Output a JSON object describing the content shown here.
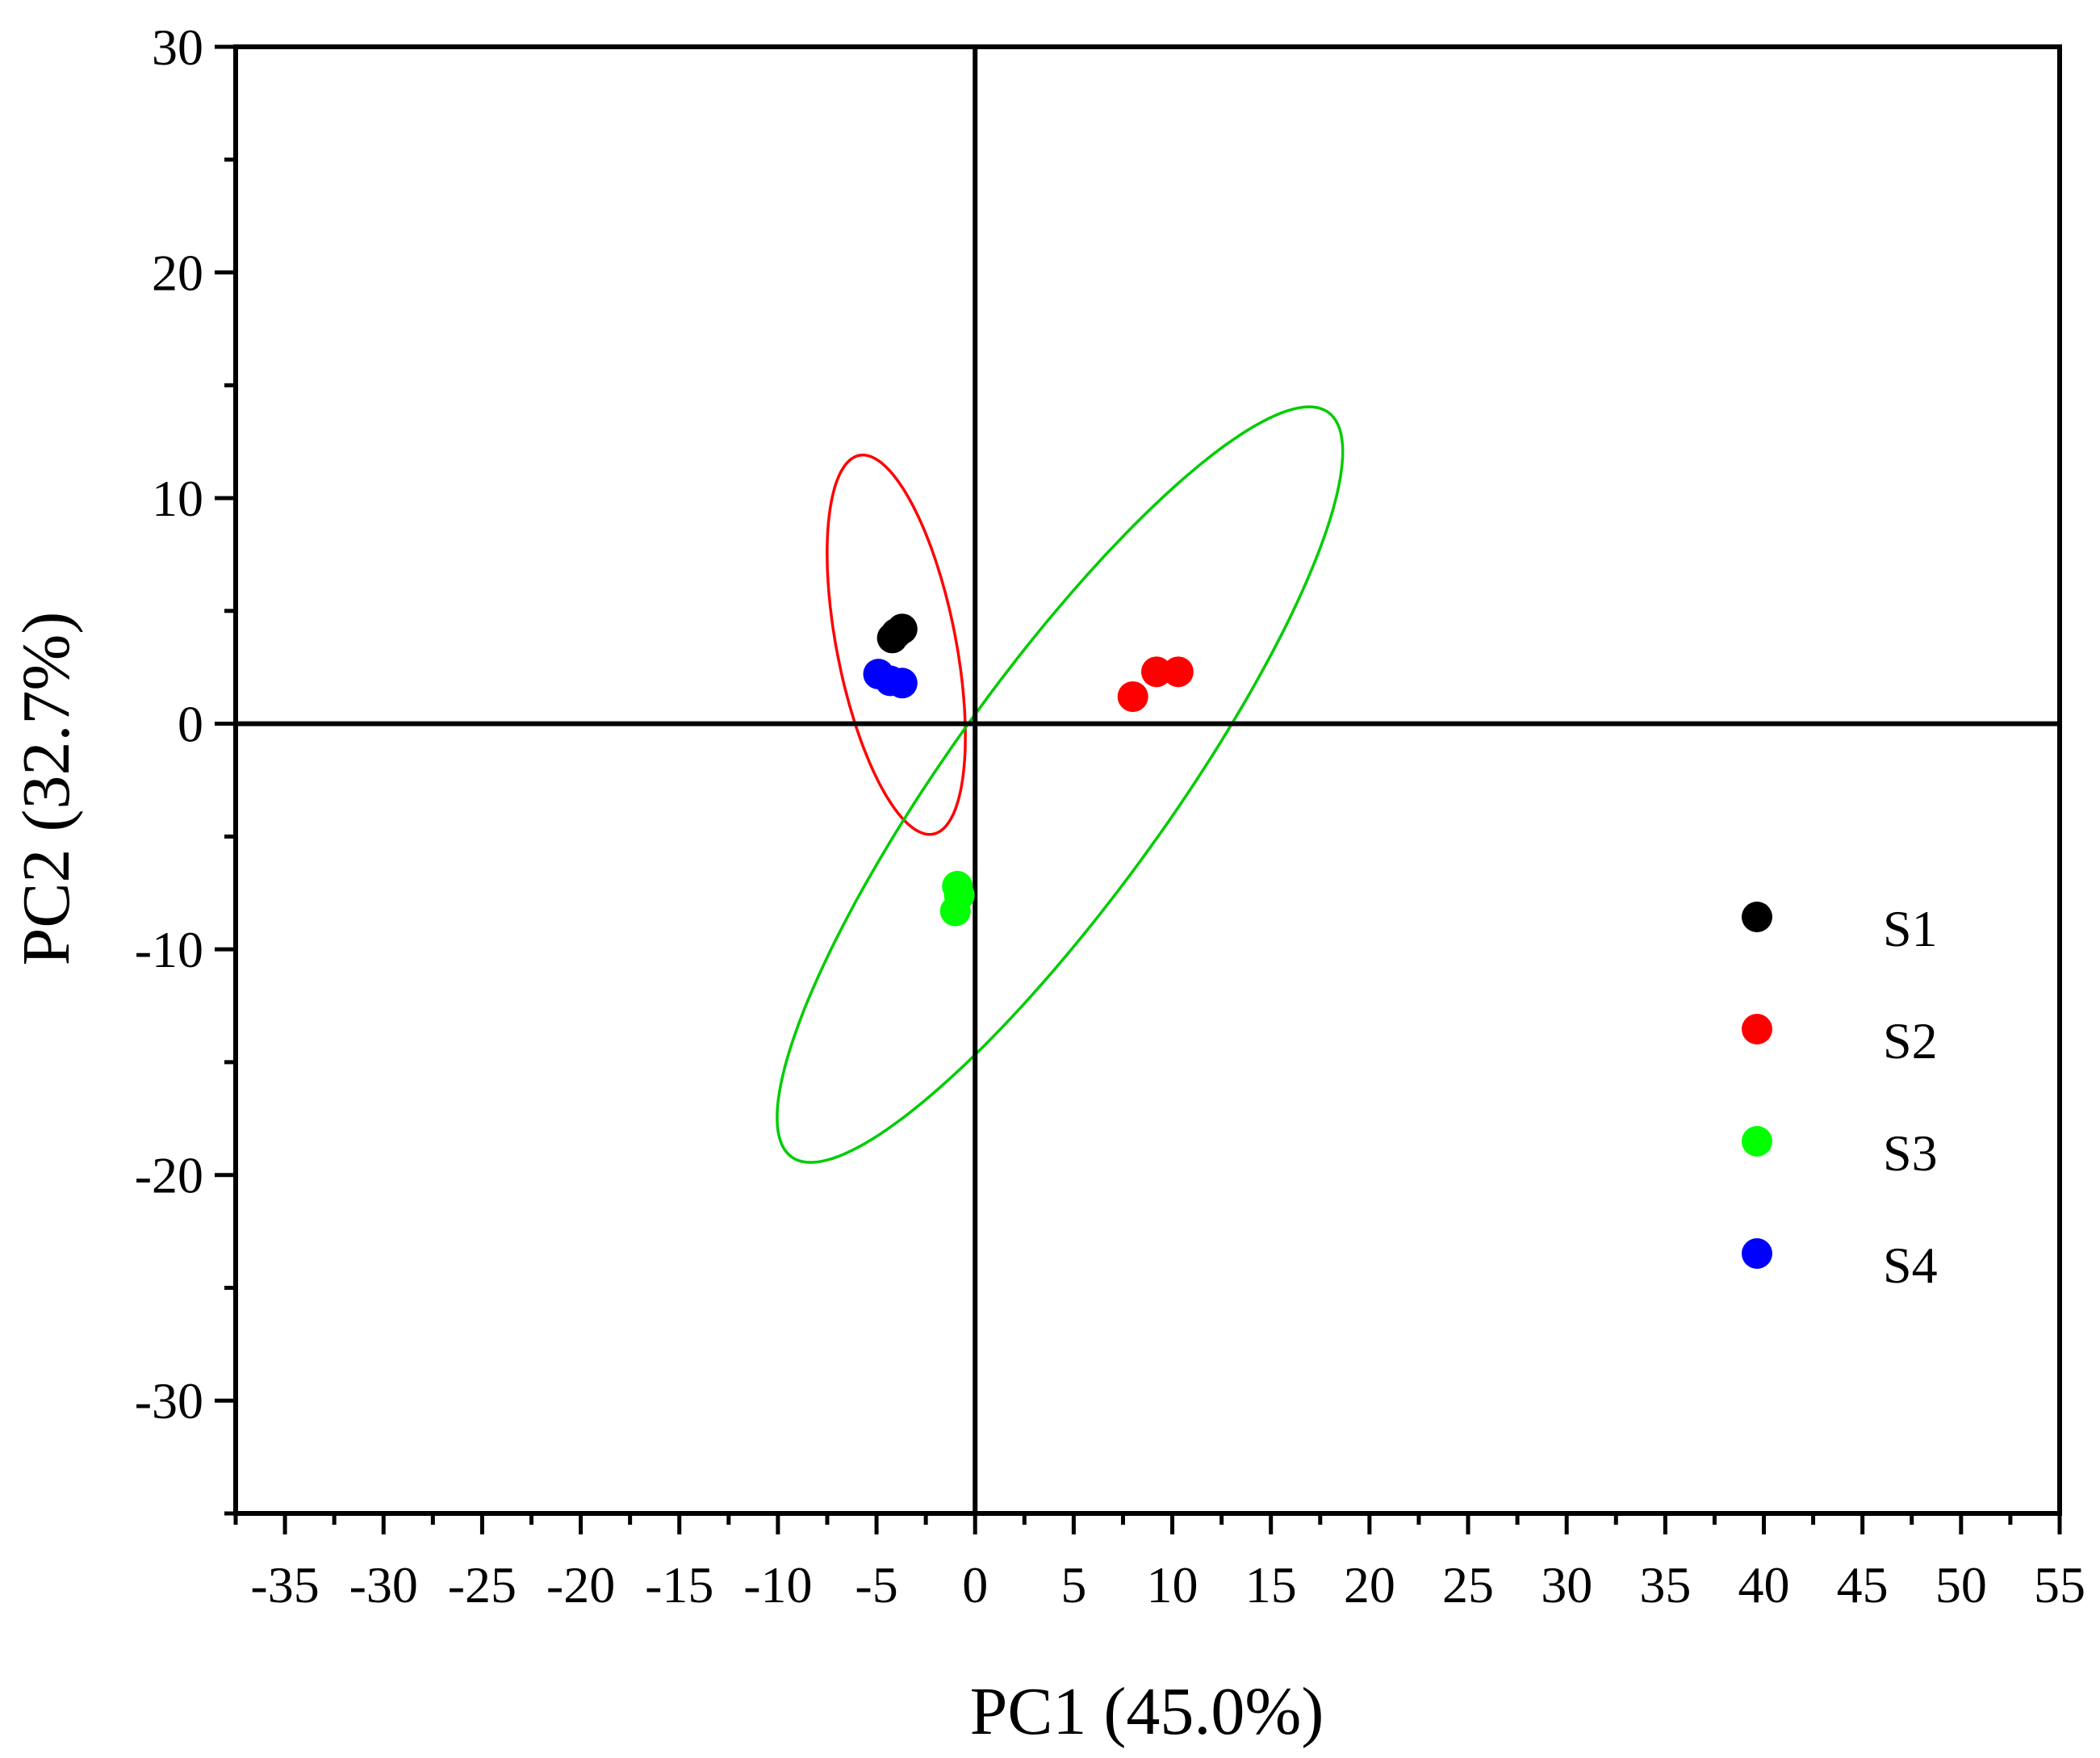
{
  "chart_data": {
    "type": "scatter",
    "title": "",
    "xlabel": "PC1 (45.0%)",
    "ylabel": "PC2 (32.7%)",
    "xlim": [
      -37.5,
      55
    ],
    "ylim": [
      -35,
      30
    ],
    "xticks": [
      -35,
      -30,
      -25,
      -20,
      -15,
      -10,
      -5,
      0,
      5,
      10,
      15,
      20,
      25,
      30,
      35,
      40,
      45,
      50,
      55
    ],
    "yticks": [
      -30,
      -20,
      -10,
      0,
      10,
      20,
      30
    ],
    "xtick_labels": [
      "-35",
      "-30",
      "-25",
      "-20",
      "-15",
      "-10",
      "-5",
      "0",
      "5",
      "10",
      "15",
      "20",
      "25",
      "30",
      "35",
      "40",
      "45",
      "50",
      "55"
    ],
    "ytick_labels": [
      "-30",
      "-20",
      "-10",
      "0",
      "10",
      "20",
      "30"
    ],
    "legend_position": "right",
    "series": [
      {
        "name": "S1",
        "color": "#000000",
        "points": [
          [
            -4.2,
            3.8
          ],
          [
            -3.7,
            4.2
          ],
          [
            -4.0,
            4.0
          ]
        ]
      },
      {
        "name": "S2",
        "color": "#ff0000",
        "points": [
          [
            8.0,
            1.2
          ],
          [
            9.2,
            2.3
          ],
          [
            10.3,
            2.3
          ]
        ]
      },
      {
        "name": "S3",
        "color": "#00ff00",
        "points": [
          [
            -0.9,
            -7.2
          ],
          [
            -1.0,
            -8.3
          ],
          [
            -0.8,
            -7.6
          ]
        ]
      },
      {
        "name": "S4",
        "color": "#0000ff",
        "points": [
          [
            -4.9,
            2.2
          ],
          [
            -4.3,
            1.9
          ],
          [
            -3.7,
            1.8
          ]
        ]
      }
    ],
    "ellipses": [
      {
        "color": "#ff0000",
        "center": [
          -4.0,
          3.5
        ],
        "rx": 8.6,
        "ry": 3.0,
        "angle": 103
      },
      {
        "color": "#00cc00",
        "center": [
          4.3,
          -2.7
        ],
        "rx": 21.4,
        "ry": 5.3,
        "angle": 50
      }
    ]
  }
}
